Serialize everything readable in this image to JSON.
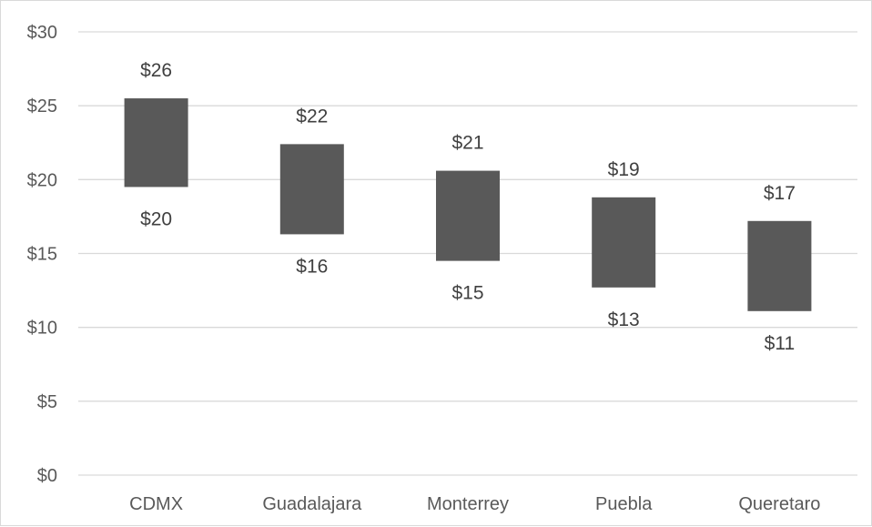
{
  "chart_data": {
    "type": "bar",
    "subtype": "floating-range",
    "title": "",
    "xlabel": "",
    "ylabel": "",
    "ylim": [
      0,
      30
    ],
    "yticks": [
      0,
      5,
      10,
      15,
      20,
      25,
      30
    ],
    "ytick_labels": [
      "$0",
      "$5",
      "$10",
      "$15",
      "$20",
      "$25",
      "$30"
    ],
    "grid": true,
    "legend": "none",
    "bar_color": "#595959",
    "categories": [
      "CDMX",
      "Guadalajara",
      "Monterrey",
      "Puebla",
      "Queretaro"
    ],
    "low": [
      19.5,
      16.3,
      14.5,
      12.7,
      11.1
    ],
    "high": [
      25.5,
      22.4,
      20.6,
      18.8,
      17.2
    ],
    "low_labels": [
      "$20",
      "$16",
      "$15",
      "$13",
      "$11"
    ],
    "high_labels": [
      "$26",
      "$22",
      "$21",
      "$19",
      "$17"
    ]
  }
}
